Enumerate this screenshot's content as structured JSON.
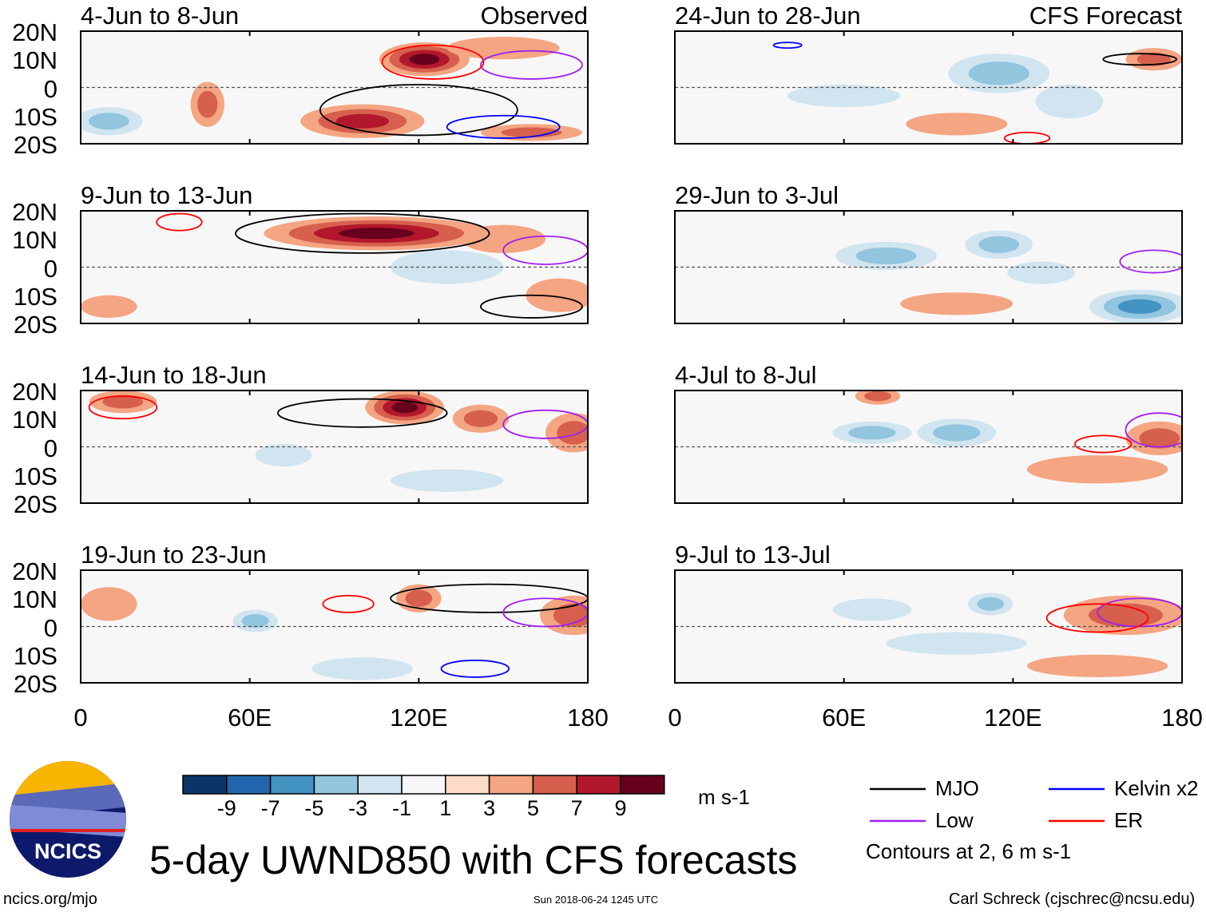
{
  "title": "5-day UWND850 with CFS forecasts",
  "url": "ncics.org/mjo",
  "timestamp": "Sun 2018-06-24 1245 UTC",
  "credit": "Carl Schreck (cjschrec@ncsu.edu)",
  "logo_text": "NCICS",
  "chart_data": {
    "type": "heatmap",
    "variable": "850-hPa zonal wind anomaly",
    "units": "m s-1",
    "lon_range": [
      0,
      180
    ],
    "lat_range": [
      -20,
      20
    ],
    "lat_ticks": [
      "20N",
      "10N",
      "0",
      "10S",
      "20S"
    ],
    "lon_ticks": [
      "0",
      "60E",
      "120E",
      "180"
    ],
    "lon_tick_values": [
      0,
      60,
      120,
      180
    ],
    "colorbar": {
      "labels": [
        "-9",
        "-7",
        "-5",
        "-3",
        "-1",
        "1",
        "3",
        "5",
        "7",
        "9"
      ],
      "colors": [
        "#0c3468",
        "#2166ac",
        "#4393c3",
        "#92c5de",
        "#d1e5f0",
        "#f7f7f7",
        "#fddbc7",
        "#f4a582",
        "#d6604d",
        "#b2182b",
        "#67001f"
      ],
      "units_label": "m s-1"
    },
    "legend": {
      "items": [
        {
          "label": "MJO",
          "color": "#000000"
        },
        {
          "label": "Kelvin x2",
          "color": "#0000ff"
        },
        {
          "label": "Low",
          "color": "#a020f0"
        },
        {
          "label": "ER",
          "color": "#ff0000"
        }
      ],
      "note": "Contours at 2, 6 m s-1"
    },
    "panels": [
      {
        "title": "4-Jun to 8-Jun",
        "tag": "Observed",
        "features": [
          {
            "lon": 122,
            "lat": 10,
            "rx": 16,
            "ry": 6,
            "v": 9
          },
          {
            "lon": 100,
            "lat": -12,
            "rx": 22,
            "ry": 6,
            "v": 7
          },
          {
            "lon": 160,
            "lat": -16,
            "rx": 18,
            "ry": 3,
            "v": 5
          },
          {
            "lon": 45,
            "lat": -6,
            "rx": 6,
            "ry": 8,
            "v": 5
          },
          {
            "lon": 10,
            "lat": -12,
            "rx": 12,
            "ry": 5,
            "v": -5
          },
          {
            "lon": 150,
            "lat": 14,
            "rx": 20,
            "ry": 4,
            "v": 3
          }
        ],
        "contours": [
          {
            "lon": 120,
            "lat": -8,
            "rx": 35,
            "ry": 9,
            "c": "#000000"
          },
          {
            "lon": 150,
            "lat": -14,
            "rx": 20,
            "ry": 4,
            "c": "#0000ff"
          },
          {
            "lon": 160,
            "lat": 8,
            "rx": 18,
            "ry": 5,
            "c": "#a020f0"
          },
          {
            "lon": 125,
            "lat": 9,
            "rx": 18,
            "ry": 6,
            "c": "#ff0000"
          }
        ]
      },
      {
        "title": "9-Jun to 13-Jun",
        "tag": "",
        "features": [
          {
            "lon": 105,
            "lat": 12,
            "rx": 40,
            "ry": 6,
            "v": 9
          },
          {
            "lon": 150,
            "lat": 10,
            "rx": 15,
            "ry": 5,
            "v": 3
          },
          {
            "lon": 10,
            "lat": -14,
            "rx": 10,
            "ry": 4,
            "v": 3
          },
          {
            "lon": 130,
            "lat": 0,
            "rx": 20,
            "ry": 6,
            "v": -3
          },
          {
            "lon": 170,
            "lat": -10,
            "rx": 12,
            "ry": 6,
            "v": 3
          }
        ],
        "contours": [
          {
            "lon": 100,
            "lat": 12,
            "rx": 45,
            "ry": 7,
            "c": "#000000"
          },
          {
            "lon": 160,
            "lat": -14,
            "rx": 18,
            "ry": 4,
            "c": "#000000"
          },
          {
            "lon": 165,
            "lat": 6,
            "rx": 15,
            "ry": 5,
            "c": "#a020f0"
          },
          {
            "lon": 35,
            "lat": 16,
            "rx": 8,
            "ry": 3,
            "c": "#ff0000"
          }
        ]
      },
      {
        "title": "14-Jun to 18-Jun",
        "tag": "",
        "features": [
          {
            "lon": 115,
            "lat": 14,
            "rx": 14,
            "ry": 6,
            "v": 9
          },
          {
            "lon": 142,
            "lat": 10,
            "rx": 10,
            "ry": 5,
            "v": 5
          },
          {
            "lon": 175,
            "lat": 5,
            "rx": 10,
            "ry": 7,
            "v": 5
          },
          {
            "lon": 15,
            "lat": 16,
            "rx": 12,
            "ry": 4,
            "v": 5
          },
          {
            "lon": 72,
            "lat": -3,
            "rx": 10,
            "ry": 4,
            "v": -3
          },
          {
            "lon": 130,
            "lat": -12,
            "rx": 20,
            "ry": 4,
            "v": -3
          }
        ],
        "contours": [
          {
            "lon": 100,
            "lat": 12,
            "rx": 30,
            "ry": 5,
            "c": "#000000"
          },
          {
            "lon": 165,
            "lat": 8,
            "rx": 15,
            "ry": 5,
            "c": "#a020f0"
          },
          {
            "lon": 15,
            "lat": 14,
            "rx": 12,
            "ry": 4,
            "c": "#ff0000"
          }
        ]
      },
      {
        "title": "19-Jun to 23-Jun",
        "tag": "",
        "features": [
          {
            "lon": 175,
            "lat": 4,
            "rx": 12,
            "ry": 7,
            "v": 5
          },
          {
            "lon": 62,
            "lat": 2,
            "rx": 8,
            "ry": 4,
            "v": -5
          },
          {
            "lon": 100,
            "lat": -15,
            "rx": 18,
            "ry": 4,
            "v": -3
          },
          {
            "lon": 10,
            "lat": 8,
            "rx": 10,
            "ry": 6,
            "v": 3
          },
          {
            "lon": 120,
            "lat": 10,
            "rx": 8,
            "ry": 5,
            "v": 5
          }
        ],
        "contours": [
          {
            "lon": 145,
            "lat": 10,
            "rx": 35,
            "ry": 5,
            "c": "#000000"
          },
          {
            "lon": 165,
            "lat": 5,
            "rx": 15,
            "ry": 5,
            "c": "#a020f0"
          },
          {
            "lon": 95,
            "lat": 8,
            "rx": 9,
            "ry": 3,
            "c": "#ff0000"
          },
          {
            "lon": 140,
            "lat": -15,
            "rx": 12,
            "ry": 3,
            "c": "#0000ff"
          }
        ]
      },
      {
        "title": "24-Jun to 28-Jun",
        "tag": "CFS Forecast",
        "features": [
          {
            "lon": 115,
            "lat": 5,
            "rx": 18,
            "ry": 7,
            "v": -5
          },
          {
            "lon": 140,
            "lat": -5,
            "rx": 12,
            "ry": 6,
            "v": -3
          },
          {
            "lon": 170,
            "lat": 10,
            "rx": 10,
            "ry": 4,
            "v": 5
          },
          {
            "lon": 60,
            "lat": -3,
            "rx": 20,
            "ry": 4,
            "v": -3
          },
          {
            "lon": 100,
            "lat": -13,
            "rx": 18,
            "ry": 4,
            "v": 3
          }
        ],
        "contours": [
          {
            "lon": 165,
            "lat": 10,
            "rx": 13,
            "ry": 2,
            "c": "#000000"
          },
          {
            "lon": 125,
            "lat": -18,
            "rx": 8,
            "ry": 2,
            "c": "#ff0000"
          },
          {
            "lon": 40,
            "lat": 15,
            "rx": 5,
            "ry": 1,
            "c": "#0000ff"
          }
        ]
      },
      {
        "title": "29-Jun to 3-Jul",
        "tag": "",
        "features": [
          {
            "lon": 75,
            "lat": 4,
            "rx": 18,
            "ry": 5,
            "v": -5
          },
          {
            "lon": 115,
            "lat": 8,
            "rx": 12,
            "ry": 5,
            "v": -5
          },
          {
            "lon": 165,
            "lat": -14,
            "rx": 18,
            "ry": 6,
            "v": -7
          },
          {
            "lon": 130,
            "lat": -2,
            "rx": 12,
            "ry": 4,
            "v": -3
          },
          {
            "lon": 100,
            "lat": -13,
            "rx": 20,
            "ry": 4,
            "v": 3
          }
        ],
        "contours": [
          {
            "lon": 170,
            "lat": 2,
            "rx": 12,
            "ry": 4,
            "c": "#a020f0"
          }
        ]
      },
      {
        "title": "4-Jul to 8-Jul",
        "tag": "",
        "features": [
          {
            "lon": 70,
            "lat": 5,
            "rx": 14,
            "ry": 4,
            "v": -5
          },
          {
            "lon": 100,
            "lat": 5,
            "rx": 14,
            "ry": 5,
            "v": -5
          },
          {
            "lon": 72,
            "lat": 18,
            "rx": 8,
            "ry": 3,
            "v": 5
          },
          {
            "lon": 172,
            "lat": 3,
            "rx": 12,
            "ry": 6,
            "v": 5
          },
          {
            "lon": 150,
            "lat": -8,
            "rx": 25,
            "ry": 5,
            "v": 3
          }
        ],
        "contours": [
          {
            "lon": 172,
            "lat": 6,
            "rx": 12,
            "ry": 6,
            "c": "#a020f0"
          },
          {
            "lon": 152,
            "lat": 1,
            "rx": 10,
            "ry": 3,
            "c": "#ff0000"
          }
        ]
      },
      {
        "title": "9-Jul to 13-Jul",
        "tag": "",
        "features": [
          {
            "lon": 70,
            "lat": 6,
            "rx": 14,
            "ry": 4,
            "v": -3
          },
          {
            "lon": 112,
            "lat": 8,
            "rx": 8,
            "ry": 4,
            "v": -5
          },
          {
            "lon": 160,
            "lat": 4,
            "rx": 22,
            "ry": 7,
            "v": 5
          },
          {
            "lon": 150,
            "lat": -14,
            "rx": 25,
            "ry": 4,
            "v": 3
          },
          {
            "lon": 100,
            "lat": -6,
            "rx": 25,
            "ry": 4,
            "v": -3
          }
        ],
        "contours": [
          {
            "lon": 165,
            "lat": 5,
            "rx": 15,
            "ry": 5,
            "c": "#a020f0"
          },
          {
            "lon": 150,
            "lat": 3,
            "rx": 18,
            "ry": 5,
            "c": "#ff0000"
          }
        ]
      }
    ]
  }
}
